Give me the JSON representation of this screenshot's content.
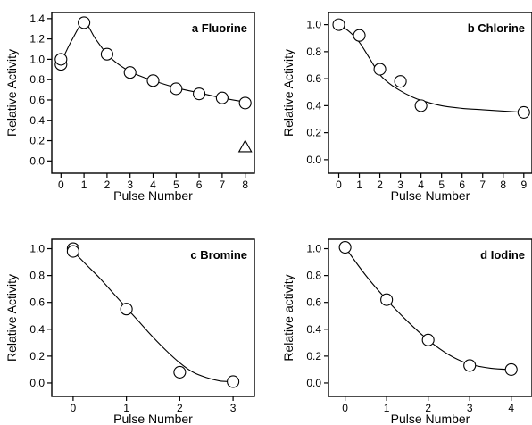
{
  "chart_data": [
    {
      "type": "scatter",
      "title": "a Fluorine",
      "xlabel": "Pulse Number",
      "ylabel": "Relative Activity",
      "xlim": [
        -0.4,
        8.4
      ],
      "ylim": [
        -0.12,
        1.46
      ],
      "xticks": [
        "0",
        "1",
        "2",
        "3",
        "4",
        "5",
        "6",
        "7",
        "8"
      ],
      "xtick_values": [
        0,
        1,
        2,
        3,
        4,
        5,
        6,
        7,
        8
      ],
      "yticks": [
        "0.0",
        "0.2",
        "0.4",
        "0.6",
        "0.8",
        "1.0",
        "1.2",
        "1.4"
      ],
      "ytick_values": [
        0,
        0.2,
        0.4,
        0.6,
        0.8,
        1.0,
        1.2,
        1.4
      ],
      "series": [
        {
          "marker": "circle",
          "x": [
            0,
            0,
            1,
            2,
            3,
            4,
            5,
            6,
            7,
            8
          ],
          "y": [
            0.95,
            1.0,
            1.36,
            1.05,
            0.87,
            0.79,
            0.71,
            0.66,
            0.62,
            0.57
          ]
        },
        {
          "marker": "triangle",
          "x": [
            8
          ],
          "y": [
            0.14
          ]
        }
      ],
      "fit": {
        "x": [
          0,
          0.5,
          1,
          1.5,
          2,
          2.5,
          3,
          3.5,
          4,
          5,
          6,
          7,
          8
        ],
        "y": [
          0.97,
          1.2,
          1.36,
          1.2,
          1.05,
          0.95,
          0.88,
          0.83,
          0.79,
          0.72,
          0.67,
          0.62,
          0.58
        ]
      }
    },
    {
      "type": "scatter",
      "title": "b Chlorine",
      "xlabel": "Pulse Number",
      "ylabel": "Relative Activity",
      "xlim": [
        -0.5,
        9.4
      ],
      "ylim": [
        -0.1,
        1.09
      ],
      "xticks": [
        "0",
        "1",
        "2",
        "3",
        "4",
        "5",
        "6",
        "7",
        "8",
        "9"
      ],
      "xtick_values": [
        0,
        1,
        2,
        3,
        4,
        5,
        6,
        7,
        8,
        9
      ],
      "yticks": [
        "0.0",
        "0.2",
        "0.4",
        "0.6",
        "0.8",
        "1.0"
      ],
      "ytick_values": [
        0,
        0.2,
        0.4,
        0.6,
        0.8,
        1.0
      ],
      "series": [
        {
          "marker": "circle",
          "x": [
            0,
            1,
            2,
            3,
            4,
            9
          ],
          "y": [
            1.0,
            0.92,
            0.67,
            0.58,
            0.4,
            0.35
          ]
        }
      ],
      "fit": {
        "x": [
          0,
          0.5,
          1,
          1.5,
          2,
          2.5,
          3,
          3.5,
          4,
          5,
          6,
          7,
          8,
          9
        ],
        "y": [
          1.0,
          0.95,
          0.87,
          0.75,
          0.63,
          0.56,
          0.51,
          0.47,
          0.44,
          0.4,
          0.38,
          0.37,
          0.36,
          0.35
        ]
      }
    },
    {
      "type": "scatter",
      "title": "c Bromine",
      "xlabel": "Pulse Number",
      "ylabel": "Relative Activity",
      "xlim": [
        -0.4,
        3.4
      ],
      "ylim": [
        -0.1,
        1.07
      ],
      "xticks": [
        "0",
        "1",
        "2",
        "3"
      ],
      "xtick_values": [
        0,
        1,
        2,
        3
      ],
      "yticks": [
        "0.0",
        "0.2",
        "0.4",
        "0.6",
        "0.8",
        "1.0"
      ],
      "ytick_values": [
        0,
        0.2,
        0.4,
        0.6,
        0.8,
        1.0
      ],
      "series": [
        {
          "marker": "circle",
          "x": [
            0,
            0,
            1,
            2,
            3
          ],
          "y": [
            1.0,
            0.98,
            0.55,
            0.08,
            0.01
          ]
        }
      ],
      "fit": {
        "x": [
          0,
          0.25,
          0.5,
          0.75,
          1,
          1.25,
          1.5,
          1.75,
          2,
          2.25,
          2.5,
          2.75,
          3
        ],
        "y": [
          0.98,
          0.88,
          0.78,
          0.67,
          0.56,
          0.45,
          0.34,
          0.24,
          0.15,
          0.08,
          0.04,
          0.015,
          0.01
        ]
      }
    },
    {
      "type": "scatter",
      "title": "d Iodine",
      "xlabel": "Pulse Number",
      "ylabel": "Relative activity",
      "xlim": [
        -0.4,
        4.5
      ],
      "ylim": [
        -0.1,
        1.07
      ],
      "xticks": [
        "0",
        "1",
        "2",
        "3",
        "4"
      ],
      "xtick_values": [
        0,
        1,
        2,
        3,
        4
      ],
      "yticks": [
        "0.0",
        "0.2",
        "0.4",
        "0.6",
        "0.8",
        "1.0"
      ],
      "ytick_values": [
        0,
        0.2,
        0.4,
        0.6,
        0.8,
        1.0
      ],
      "series": [
        {
          "marker": "circle",
          "x": [
            0,
            1,
            2,
            3,
            4
          ],
          "y": [
            1.01,
            0.62,
            0.32,
            0.13,
            0.1
          ]
        }
      ],
      "fit": {
        "x": [
          0,
          0.5,
          1,
          1.5,
          2,
          2.5,
          3,
          3.5,
          4
        ],
        "y": [
          1.01,
          0.8,
          0.62,
          0.46,
          0.32,
          0.21,
          0.14,
          0.11,
          0.1
        ]
      }
    }
  ]
}
